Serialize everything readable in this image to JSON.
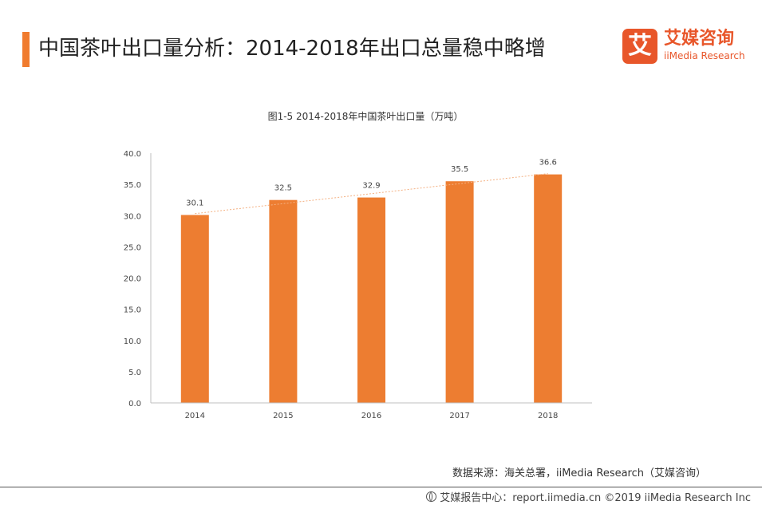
{
  "header": {
    "title": "中国茶叶出口量分析：2014-2018年出口总量稳中略增"
  },
  "logo": {
    "mark": "艾",
    "name_cn": "艾媒咨询",
    "name_en": "iiMedia Research"
  },
  "colors": {
    "accent": "#F07B2E",
    "bar": "#ED7D31",
    "trend": "#F4B183",
    "logo": "#E8562A"
  },
  "chart_data": {
    "type": "bar",
    "title": "图1-5 2014-2018年中国茶叶出口量（万吨）",
    "categories": [
      "2014",
      "2015",
      "2016",
      "2017",
      "2018"
    ],
    "values": [
      30.1,
      32.5,
      32.9,
      35.5,
      36.6
    ],
    "data_labels": [
      "30.1",
      "32.5",
      "32.9",
      "35.5",
      "36.6"
    ],
    "ylim": [
      0,
      40
    ],
    "yticks": [
      "0.0",
      "5.0",
      "10.0",
      "15.0",
      "20.0",
      "25.0",
      "30.0",
      "35.0",
      "40.0"
    ],
    "trendline": true,
    "grid": false,
    "xlabel": "",
    "ylabel": ""
  },
  "source": "数据来源：海关总署，iiMedia Research（艾媒咨询）",
  "footer": "艾媒报告中心：report.iimedia.cn ©2019 iiMedia Research Inc"
}
